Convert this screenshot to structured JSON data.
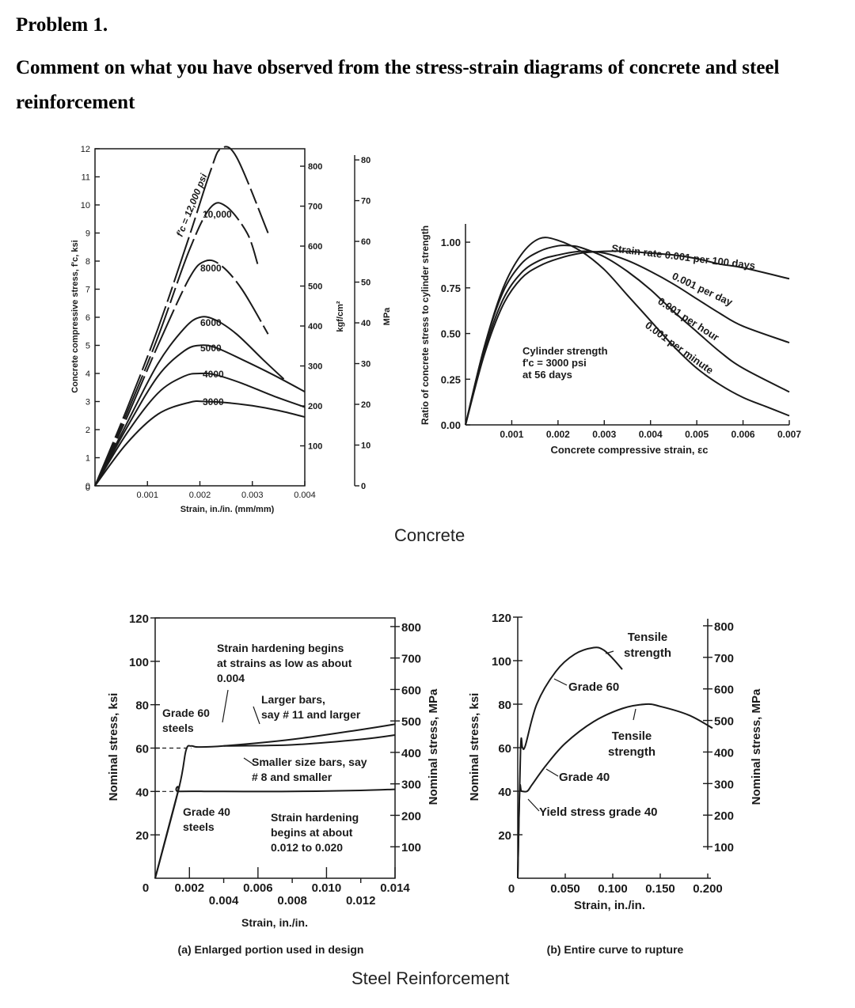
{
  "problem": {
    "number": "Problem 1.",
    "text": "Comment on what you have observed from the stress-strain diagrams of concrete and steel reinforcement"
  },
  "sections": {
    "concrete": "Concrete",
    "steel": "Steel Reinforcement"
  },
  "colors": {
    "ink": "#1a1a1a",
    "background": "#ffffff"
  },
  "chart_data": [
    {
      "id": "concrete-curves",
      "type": "line",
      "title": "",
      "xlabel": "Strain, in./in. (mm/mm)",
      "ylabel": "Concrete compressive stress, f'c, ksi",
      "y2label": "kgf/cm²",
      "y3label": "MPa",
      "xlim": [
        0,
        0.004
      ],
      "ylim": [
        0,
        12
      ],
      "xticks": [
        0.001,
        0.002,
        0.003,
        0.004
      ],
      "xtick_labels": [
        "0.001",
        "0.002",
        "0.003",
        "0.004"
      ],
      "yticks": [
        0,
        1,
        2,
        3,
        4,
        5,
        6,
        7,
        8,
        9,
        10,
        11,
        12
      ],
      "y2ticks": [
        100,
        200,
        300,
        400,
        500,
        600,
        700,
        800
      ],
      "y3ticks": [
        0,
        10,
        20,
        30,
        40,
        50,
        60,
        70,
        80
      ],
      "series": [
        {
          "name": "3000",
          "label": "3000",
          "x": [
            0,
            0.0006,
            0.0012,
            0.0018,
            0.0021,
            0.0025,
            0.003,
            0.0035,
            0.004
          ],
          "values": [
            0,
            1.5,
            2.55,
            2.97,
            3.0,
            2.96,
            2.85,
            2.68,
            2.45
          ]
        },
        {
          "name": "4000",
          "label": "4000",
          "x": [
            0,
            0.0006,
            0.0012,
            0.0017,
            0.002,
            0.0023,
            0.0028,
            0.0034,
            0.004
          ],
          "values": [
            0,
            1.85,
            3.3,
            3.9,
            4.0,
            3.95,
            3.65,
            3.2,
            2.8
          ]
        },
        {
          "name": "5000",
          "label": "5000",
          "x": [
            0,
            0.0006,
            0.0012,
            0.0017,
            0.002,
            0.0023,
            0.0028,
            0.0034,
            0.004
          ],
          "values": [
            0,
            2.05,
            3.9,
            4.8,
            5.0,
            4.92,
            4.5,
            3.95,
            3.35
          ]
        },
        {
          "name": "6000",
          "label": "6000",
          "x": [
            0,
            0.0006,
            0.0012,
            0.0017,
            0.002,
            0.0023,
            0.0027,
            0.0032,
            0.0036
          ],
          "values": [
            0,
            2.2,
            4.35,
            5.6,
            6.0,
            5.9,
            5.4,
            4.5,
            3.8
          ]
        },
        {
          "name": "8000",
          "label": "8000",
          "x": [
            0,
            0.0006,
            0.0012,
            0.0018,
            0.0021,
            0.0024,
            0.0028,
            0.0033
          ],
          "values": [
            0,
            2.4,
            5.0,
            7.4,
            8.0,
            7.85,
            7.0,
            5.4
          ]
        },
        {
          "name": "10000",
          "label": "10,000",
          "x": [
            0,
            0.0006,
            0.0012,
            0.0018,
            0.0022,
            0.0025,
            0.0029,
            0.0031
          ],
          "values": [
            0,
            2.55,
            5.3,
            8.4,
            9.9,
            9.95,
            9.0,
            7.9
          ]
        },
        {
          "name": "12000",
          "label": "f'c = 12,000 psi",
          "x": [
            0,
            0.0006,
            0.0012,
            0.0018,
            0.0022,
            0.0024,
            0.0027,
            0.0033
          ],
          "values": [
            0,
            2.7,
            5.6,
            8.9,
            11.2,
            12.0,
            11.7,
            9.0
          ]
        }
      ]
    },
    {
      "id": "strain-rate",
      "type": "line",
      "title": "",
      "xlabel": "Concrete compressive strain, εc",
      "ylabel": "Ratio of concrete stress to cylinder strength",
      "xlim": [
        0,
        0.007
      ],
      "ylim": [
        0,
        1.1
      ],
      "xticks": [
        0.001,
        0.002,
        0.003,
        0.004,
        0.005,
        0.006,
        0.007
      ],
      "xtick_labels": [
        "0.001",
        "0.002",
        "0.003",
        "0.004",
        "0.005",
        "0.006",
        "0.007"
      ],
      "yticks": [
        0,
        0.25,
        0.5,
        0.75,
        1.0
      ],
      "ytick_labels": [
        "0.00",
        "0.25",
        "0.50",
        "0.75",
        "1.00"
      ],
      "annotation": [
        "Cylinder strength",
        "f'c = 3000 psi",
        "at 56 days"
      ],
      "series": [
        {
          "name": "0.001 per minute",
          "label": "0.001 per minute",
          "x": [
            0,
            0.0004,
            0.0008,
            0.0012,
            0.0016,
            0.002,
            0.0025,
            0.003,
            0.0035,
            0.004,
            0.0045,
            0.005,
            0.0055,
            0.006,
            0.0065,
            0.007
          ],
          "values": [
            0,
            0.42,
            0.74,
            0.93,
            1.02,
            1.01,
            0.95,
            0.85,
            0.71,
            0.57,
            0.43,
            0.31,
            0.22,
            0.15,
            0.1,
            0.05
          ]
        },
        {
          "name": "0.001 per hour",
          "label": "0.001 per hour",
          "x": [
            0,
            0.0004,
            0.0008,
            0.0012,
            0.0016,
            0.002,
            0.0023,
            0.0025,
            0.003,
            0.0035,
            0.004,
            0.0045,
            0.005,
            0.0055,
            0.006,
            0.007
          ],
          "values": [
            0,
            0.42,
            0.72,
            0.88,
            0.95,
            0.98,
            0.98,
            0.97,
            0.92,
            0.84,
            0.74,
            0.62,
            0.51,
            0.4,
            0.31,
            0.18
          ]
        },
        {
          "name": "0.001 per day",
          "label": "0.001 per day",
          "x": [
            0,
            0.0004,
            0.0008,
            0.0012,
            0.0016,
            0.002,
            0.0025,
            0.003,
            0.0035,
            0.004,
            0.0045,
            0.005,
            0.0055,
            0.006,
            0.007
          ],
          "values": [
            0,
            0.4,
            0.68,
            0.83,
            0.9,
            0.93,
            0.95,
            0.94,
            0.9,
            0.84,
            0.77,
            0.69,
            0.61,
            0.54,
            0.45
          ]
        },
        {
          "name": "Strain rate 0.001 per 100 days",
          "label": "Strain rate 0.001 per 100 days",
          "x": [
            0,
            0.0004,
            0.0008,
            0.0012,
            0.0016,
            0.002,
            0.0025,
            0.003,
            0.0035,
            0.004,
            0.0045,
            0.005,
            0.0055,
            0.006,
            0.007
          ],
          "values": [
            0,
            0.38,
            0.65,
            0.8,
            0.87,
            0.91,
            0.94,
            0.95,
            0.95,
            0.94,
            0.93,
            0.91,
            0.88,
            0.86,
            0.8
          ]
        }
      ]
    },
    {
      "id": "steel-enlarged",
      "type": "line",
      "title": "",
      "caption": "(a) Enlarged portion used in design",
      "xlabel": "Strain, in./in.",
      "ylabel": "Nominal stress, ksi",
      "y2label": "Nominal stress, MPa",
      "xlim": [
        0,
        0.014
      ],
      "ylim": [
        0,
        120
      ],
      "xticks_top": [
        "0.002",
        "0.006",
        "0.010",
        "0.014"
      ],
      "xticks_top_values": [
        0.002,
        0.006,
        0.01,
        0.014
      ],
      "xticks_bottom": [
        "0.004",
        "0.008",
        "0.012"
      ],
      "xticks_bottom_values": [
        0.004,
        0.008,
        0.012
      ],
      "yticks": [
        20,
        40,
        60,
        80,
        100,
        120
      ],
      "y2ticks": [
        100,
        200,
        300,
        400,
        500,
        600,
        700,
        800
      ],
      "origin_label": "0",
      "annotations": {
        "strain_hardening_low": [
          "Strain hardening begins",
          "at strains as low as about",
          "0.004"
        ],
        "larger_bars": [
          "Larger bars,",
          "say # 11 and larger"
        ],
        "smaller_bars": [
          "Smaller size bars, say",
          "# 8 and smaller"
        ],
        "grade60": [
          "Grade 60",
          "steels"
        ],
        "grade40": [
          "Grade 40",
          "steels"
        ],
        "strain_hardening_high": [
          "Strain hardening",
          "begins at about",
          "0.012 to 0.020"
        ]
      },
      "series": [
        {
          "name": "Grade 60 larger bars",
          "x": [
            0,
            0.0014,
            0.0018,
            0.0021,
            0.0025,
            0.004,
            0.008,
            0.012,
            0.014
          ],
          "values": [
            0,
            42,
            59,
            61,
            60.5,
            61,
            64,
            68.5,
            71
          ]
        },
        {
          "name": "Grade 60 smaller bars",
          "x": [
            0.004,
            0.008,
            0.012,
            0.014
          ],
          "values": [
            61,
            61.5,
            64,
            66
          ]
        },
        {
          "name": "Grade 40",
          "x": [
            0,
            0.0013,
            0.0014,
            0.004,
            0.008,
            0.012,
            0.014
          ],
          "values": [
            0,
            39,
            40,
            40,
            40,
            40.5,
            41
          ]
        }
      ]
    },
    {
      "id": "steel-rupture",
      "type": "line",
      "title": "",
      "caption": "(b) Entire curve to rupture",
      "xlabel": "Strain, in./in.",
      "ylabel": "Nominal stress, ksi",
      "y2label": "Nominal stress, MPa",
      "xlim": [
        0,
        0.2
      ],
      "ylim": [
        0,
        120
      ],
      "xticks": [
        0.05,
        0.1,
        0.15,
        0.2
      ],
      "xtick_labels": [
        "0.050",
        "0.100",
        "0.150",
        "0.200"
      ],
      "yticks": [
        20,
        40,
        60,
        80,
        100,
        120
      ],
      "y2ticks": [
        100,
        200,
        300,
        400,
        500,
        600,
        700,
        800
      ],
      "origin_label": "0",
      "annotations": {
        "tensile60": [
          "Tensile",
          "strength"
        ],
        "grade60": "Grade 60",
        "tensile40": [
          "Tensile",
          "strength"
        ],
        "grade40": "Grade 40",
        "yield40": "Yield stress grade 40"
      },
      "series": [
        {
          "name": "Grade 60",
          "x": [
            0,
            0.003,
            0.005,
            0.008,
            0.02,
            0.04,
            0.06,
            0.08,
            0.09,
            0.1,
            0.11
          ],
          "values": [
            0,
            60,
            60,
            61,
            80,
            95,
            103,
            106,
            105,
            101,
            96
          ]
        },
        {
          "name": "Grade 40",
          "x": [
            0,
            0.002,
            0.004,
            0.01,
            0.015,
            0.03,
            0.05,
            0.08,
            0.11,
            0.135,
            0.15,
            0.18,
            0.205
          ],
          "values": [
            0,
            40,
            40,
            40,
            43,
            52,
            62,
            72,
            78,
            80,
            79,
            75,
            69
          ]
        }
      ]
    }
  ]
}
